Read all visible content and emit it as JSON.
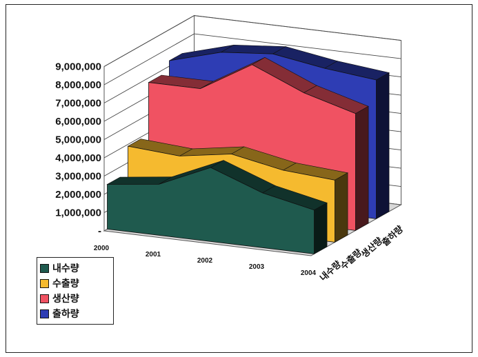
{
  "chart_data": {
    "type": "area",
    "style": "3d",
    "title": "",
    "categories": [
      "2000",
      "2001",
      "2002",
      "2003",
      "2004"
    ],
    "series": [
      {
        "name": "내수량",
        "color": "#1f5a4e",
        "values": [
          2450000,
          2800000,
          4050000,
          3000000,
          2400000
        ]
      },
      {
        "name": "수출량",
        "color": "#f5ba2f",
        "values": [
          3900000,
          3700000,
          4150000,
          3600000,
          3400000
        ]
      },
      {
        "name": "생산량",
        "color": "#f05262",
        "values": [
          6750000,
          6750000,
          8400000,
          7200000,
          6400000
        ]
      },
      {
        "name": "출하량",
        "color": "#2e3db4",
        "values": [
          7300000,
          8100000,
          8350000,
          7900000,
          7600000
        ]
      }
    ],
    "y_ticks": [
      "-",
      "1,000,000",
      "2,000,000",
      "3,000,000",
      "4,000,000",
      "5,000,000",
      "6,000,000",
      "7,000,000",
      "8,000,000",
      "9,000,000"
    ],
    "ylim": [
      0,
      9000000
    ],
    "depth_labels": [
      "내수량",
      "수출량",
      "생산량",
      "출하량"
    ],
    "grid": true,
    "legend_position": "bottom-left"
  }
}
